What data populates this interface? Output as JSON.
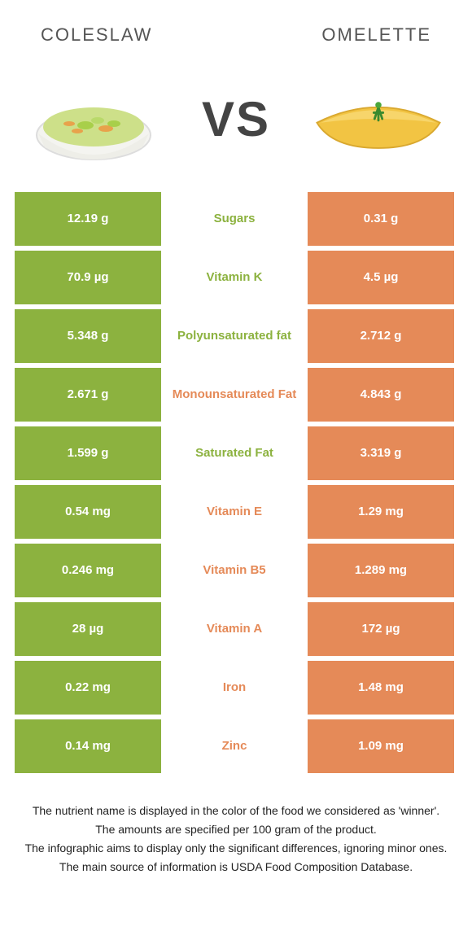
{
  "colors": {
    "left": "#8cb23f",
    "right": "#e58a58",
    "background": "#ffffff",
    "text": "#333333"
  },
  "header": {
    "left_title": "Coleslaw",
    "right_title": "Omelette",
    "vs_label": "VS"
  },
  "rows": [
    {
      "left": "12.19 g",
      "label": "Sugars",
      "right": "0.31 g",
      "winner": "left"
    },
    {
      "left": "70.9 µg",
      "label": "Vitamin K",
      "right": "4.5 µg",
      "winner": "left"
    },
    {
      "left": "5.348 g",
      "label": "Polyunsaturated fat",
      "right": "2.712 g",
      "winner": "left"
    },
    {
      "left": "2.671 g",
      "label": "Monounsaturated Fat",
      "right": "4.843 g",
      "winner": "right"
    },
    {
      "left": "1.599 g",
      "label": "Saturated Fat",
      "right": "3.319 g",
      "winner": "left"
    },
    {
      "left": "0.54 mg",
      "label": "Vitamin E",
      "right": "1.29 mg",
      "winner": "right"
    },
    {
      "left": "0.246 mg",
      "label": "Vitamin B5",
      "right": "1.289 mg",
      "winner": "right"
    },
    {
      "left": "28 µg",
      "label": "Vitamin A",
      "right": "172 µg",
      "winner": "right"
    },
    {
      "left": "0.22 mg",
      "label": "Iron",
      "right": "1.48 mg",
      "winner": "right"
    },
    {
      "left": "0.14 mg",
      "label": "Zinc",
      "right": "1.09 mg",
      "winner": "right"
    }
  ],
  "footnotes": [
    "The nutrient name is displayed in the color of the food we considered as 'winner'.",
    "The amounts are specified per 100 gram of the product.",
    "The infographic aims to display only the significant differences, ignoring minor ones.",
    "The main source of information is USDA Food Composition Database."
  ]
}
